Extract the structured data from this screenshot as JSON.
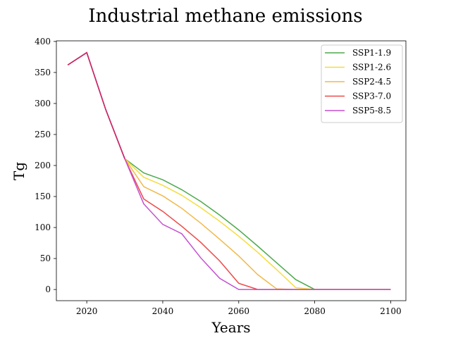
{
  "chart_data": {
    "type": "line",
    "title": "Industrial methane emissions",
    "xlabel": "Years",
    "ylabel": "Tg",
    "xlim": [
      2012,
      2104
    ],
    "ylim": [
      -18,
      401
    ],
    "xticks": [
      2020,
      2040,
      2060,
      2080,
      2100
    ],
    "yticks": [
      0,
      50,
      100,
      150,
      200,
      250,
      300,
      350,
      400
    ],
    "grid": false,
    "legend_position": "top-right",
    "x": [
      2015,
      2020,
      2025,
      2030,
      2035,
      2040,
      2045,
      2050,
      2055,
      2060,
      2065,
      2070,
      2075,
      2080,
      2085,
      2090,
      2095,
      2100
    ],
    "series": [
      {
        "name": "SSP1-1.9",
        "color": "#4daa4d",
        "values": [
          362,
          382,
          290,
          211,
          188,
          177,
          161,
          142,
          120,
          96,
          70,
          43,
          16,
          0,
          0,
          0,
          0,
          0
        ]
      },
      {
        "name": "SSP1-2.6",
        "color": "#f5dc3c",
        "values": [
          362,
          382,
          290,
          211,
          181,
          168,
          152,
          132,
          110,
          86,
          60,
          32,
          3,
          0,
          0,
          0,
          0,
          0
        ]
      },
      {
        "name": "SSP2-4.5",
        "color": "#f2b84a",
        "values": [
          362,
          382,
          290,
          211,
          166,
          151,
          131,
          107,
          81,
          54,
          24,
          1,
          0,
          0,
          0,
          0,
          0,
          0
        ]
      },
      {
        "name": "SSP3-7.0",
        "color": "#ee4949",
        "values": [
          362,
          382,
          290,
          211,
          146,
          126,
          102,
          76,
          46,
          10,
          0,
          0,
          0,
          0,
          0,
          0,
          0,
          0
        ]
      },
      {
        "name": "SSP5-8.5",
        "color": "#c54fd0",
        "values": [
          362,
          382,
          290,
          211,
          138,
          105,
          90,
          51,
          18,
          0,
          0,
          0,
          0,
          0,
          0,
          0,
          0,
          0
        ]
      }
    ],
    "overlay_color": "#c8266b",
    "overlay_until_x": 2030
  }
}
